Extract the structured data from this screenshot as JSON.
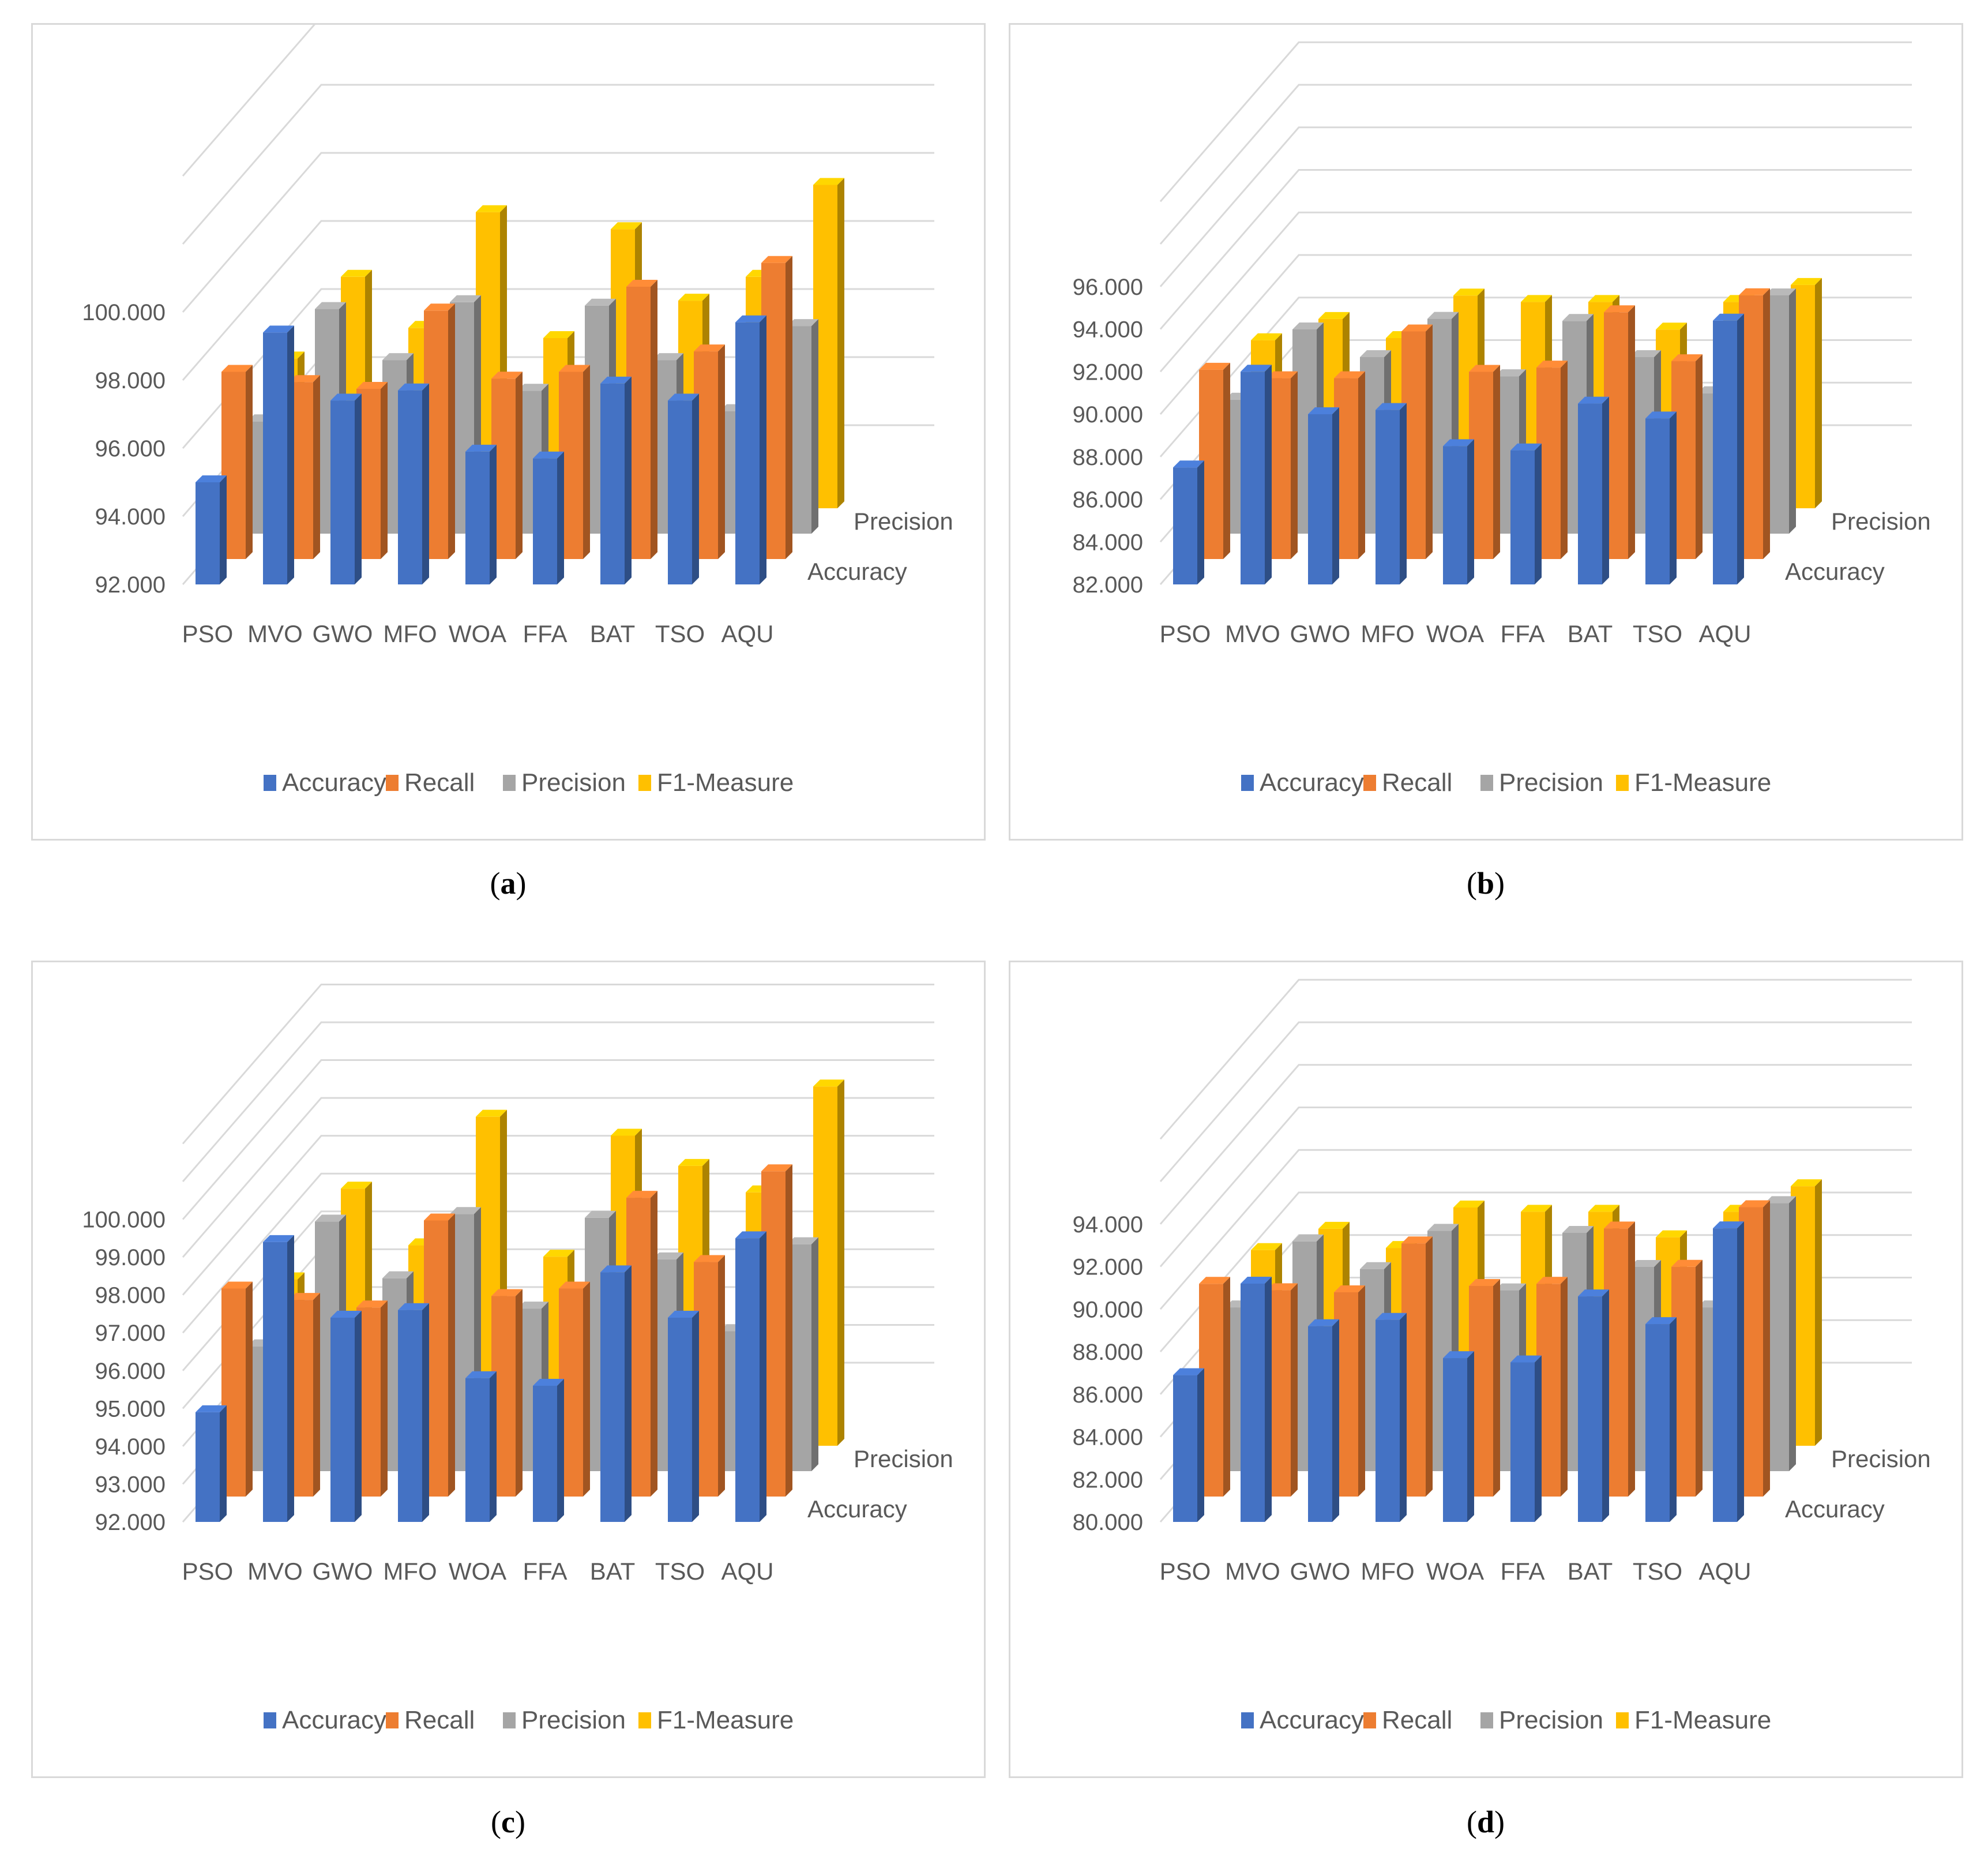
{
  "colors": {
    "Accuracy": "#4472c4",
    "Recall": "#ed7d31",
    "Precision": "#a5a5a5",
    "F1-Measure": "#ffc000"
  },
  "panels": [
    {
      "caption": "a"
    },
    {
      "caption": "b"
    },
    {
      "caption": "c"
    },
    {
      "caption": "d"
    }
  ],
  "chart_data": [
    {
      "type": "bar",
      "subtype": "3d-column",
      "categories": [
        "PSO",
        "MVO",
        "GWO",
        "MFO",
        "WOA",
        "FFA",
        "BAT",
        "TSO",
        "AQU"
      ],
      "depth_labels": [
        "Accuracy",
        "Precision"
      ],
      "y_ticks": [
        "92.000",
        "94.000",
        "96.000",
        "98.000",
        "100.000"
      ],
      "ylim": [
        92,
        102
      ],
      "legend": "bottom",
      "series": [
        {
          "name": "Accuracy",
          "values": [
            95.0,
            99.4,
            97.4,
            97.7,
            95.9,
            95.7,
            97.9,
            97.4,
            99.7
          ]
        },
        {
          "name": "Recall",
          "values": [
            97.5,
            97.2,
            97.0,
            99.3,
            97.3,
            97.5,
            100.0,
            98.1,
            100.7
          ]
        },
        {
          "name": "Precision",
          "values": [
            95.3,
            98.6,
            97.1,
            98.8,
            96.2,
            98.7,
            97.1,
            95.6,
            98.1
          ]
        },
        {
          "name": "F1-Measure",
          "values": [
            96.4,
            98.8,
            97.3,
            100.7,
            97.0,
            100.2,
            98.1,
            98.8,
            101.5
          ]
        }
      ]
    },
    {
      "type": "bar",
      "subtype": "3d-column",
      "categories": [
        "PSO",
        "MVO",
        "GWO",
        "MFO",
        "WOA",
        "FFA",
        "BAT",
        "TSO",
        "AQU"
      ],
      "depth_labels": [
        "Accuracy",
        "Precision"
      ],
      "y_ticks": [
        "82.000",
        "84.000",
        "86.000",
        "88.000",
        "90.000",
        "92.000",
        "94.000",
        "96.000"
      ],
      "ylim": [
        82,
        98
      ],
      "legend": "bottom",
      "series": [
        {
          "name": "Accuracy",
          "values": [
            87.5,
            92.0,
            90.0,
            90.2,
            88.5,
            88.3,
            90.5,
            89.8,
            94.4
          ]
        },
        {
          "name": "Recall",
          "values": [
            90.9,
            90.5,
            90.5,
            92.7,
            90.8,
            91.0,
            93.6,
            91.3,
            94.4
          ]
        },
        {
          "name": "Precision",
          "values": [
            88.3,
            91.6,
            90.3,
            92.1,
            89.4,
            92.0,
            90.3,
            88.6,
            93.2
          ]
        },
        {
          "name": "F1-Measure",
          "values": [
            89.9,
            90.9,
            90.0,
            92.0,
            91.7,
            91.7,
            90.4,
            91.7,
            92.5
          ]
        }
      ]
    },
    {
      "type": "bar",
      "subtype": "3d-column",
      "categories": [
        "PSO",
        "MVO",
        "GWO",
        "MFO",
        "WOA",
        "FFA",
        "BAT",
        "TSO",
        "AQU"
      ],
      "depth_labels": [
        "Accuracy",
        "Precision"
      ],
      "y_ticks": [
        "92.000",
        "93.000",
        "94.000",
        "95.000",
        "96.000",
        "97.000",
        "98.000",
        "99.000",
        "100.000"
      ],
      "ylim": [
        92,
        101
      ],
      "legend": "bottom",
      "series": [
        {
          "name": "Accuracy",
          "values": [
            94.9,
            99.4,
            97.4,
            97.6,
            95.8,
            95.6,
            98.6,
            97.4,
            99.5
          ]
        },
        {
          "name": "Recall",
          "values": [
            97.5,
            97.2,
            97.0,
            99.3,
            97.3,
            97.5,
            99.9,
            98.2,
            100.6
          ]
        },
        {
          "name": "Precision",
          "values": [
            95.3,
            98.6,
            97.1,
            98.8,
            96.3,
            98.7,
            97.6,
            95.7,
            98.0
          ]
        },
        {
          "name": "F1-Measure",
          "values": [
            96.4,
            98.8,
            97.3,
            100.7,
            97.0,
            100.2,
            99.4,
            98.7,
            101.5
          ]
        }
      ]
    },
    {
      "type": "bar",
      "subtype": "3d-column",
      "categories": [
        "PSO",
        "MVO",
        "GWO",
        "MFO",
        "WOA",
        "FFA",
        "BAT",
        "TSO",
        "AQU"
      ],
      "depth_labels": [
        "Accuracy",
        "Precision"
      ],
      "y_ticks": [
        "80.000",
        "82.000",
        "84.000",
        "86.000",
        "88.000",
        "90.000",
        "92.000",
        "94.000"
      ],
      "ylim": [
        80,
        96
      ],
      "legend": "bottom",
      "series": [
        {
          "name": "Accuracy",
          "values": [
            86.9,
            91.2,
            89.2,
            89.5,
            87.7,
            87.5,
            90.6,
            89.3,
            93.8
          ]
        },
        {
          "name": "Recall",
          "values": [
            90.0,
            89.7,
            89.6,
            91.9,
            89.9,
            90.0,
            92.6,
            90.8,
            93.6
          ]
        },
        {
          "name": "Precision",
          "values": [
            87.7,
            90.8,
            89.5,
            91.3,
            88.5,
            91.2,
            89.6,
            87.7,
            92.6
          ]
        },
        {
          "name": "F1-Measure",
          "values": [
            89.2,
            90.2,
            89.3,
            91.2,
            91.0,
            91.0,
            89.8,
            91.0,
            92.2
          ]
        }
      ]
    }
  ]
}
